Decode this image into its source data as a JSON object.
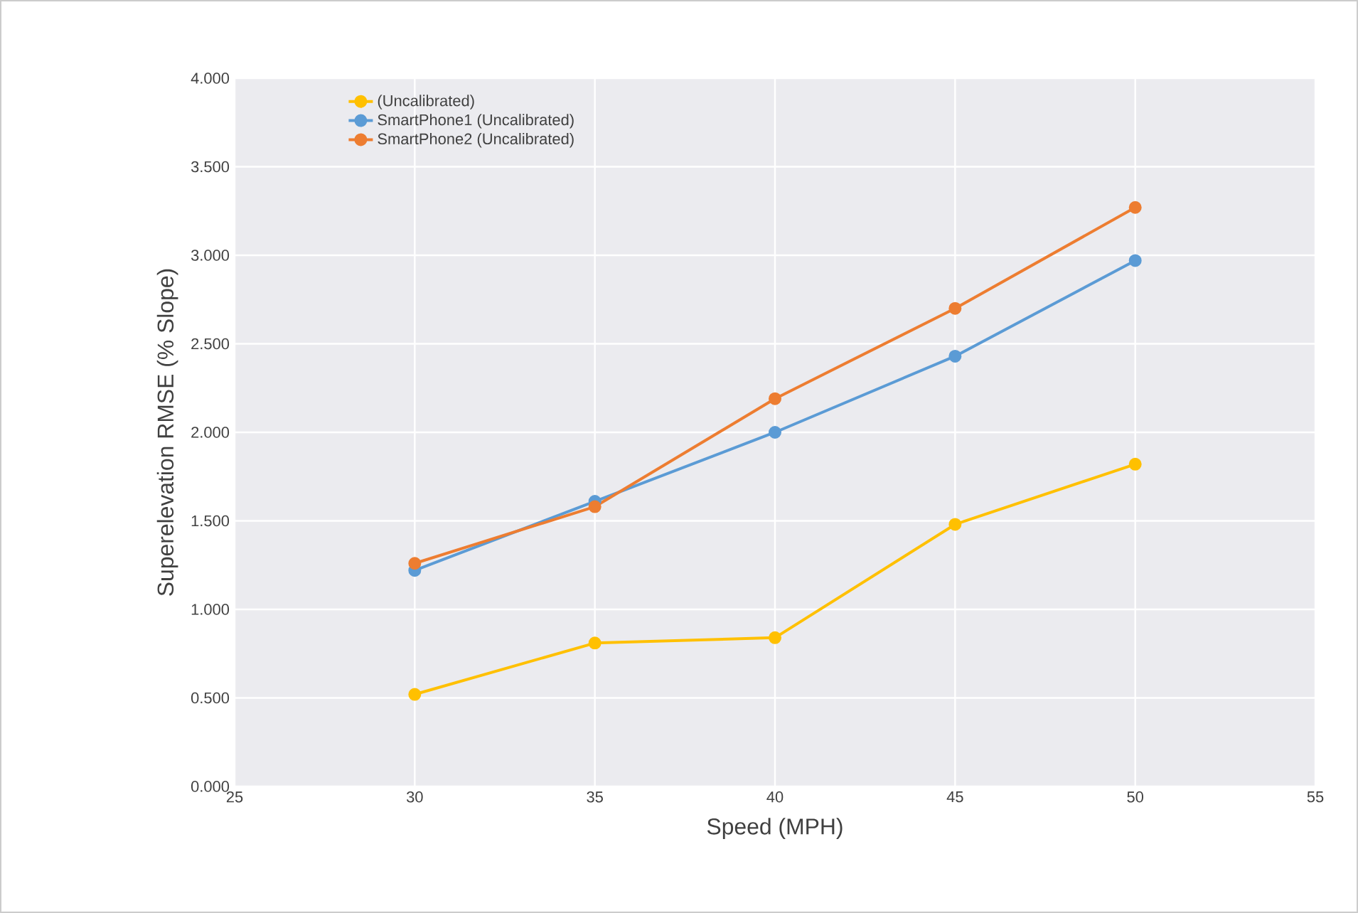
{
  "chart_data": {
    "type": "line",
    "xlabel": "Speed (MPH)",
    "ylabel": "Superelevation RMSE (% Slope)",
    "x": [
      30,
      35,
      40,
      45,
      50
    ],
    "series": [
      {
        "name": "(Uncalibrated)",
        "color": "#ffc000",
        "values": [
          0.52,
          0.81,
          0.84,
          1.48,
          1.82
        ]
      },
      {
        "name": "SmartPhone1 (Uncalibrated)",
        "color": "#5b9bd5",
        "values": [
          1.22,
          1.61,
          2.0,
          2.43,
          2.97
        ]
      },
      {
        "name": "SmartPhone2 (Uncalibrated)",
        "color": "#ed7d31",
        "values": [
          1.26,
          1.58,
          2.19,
          2.7,
          3.27
        ]
      }
    ],
    "xlim": [
      25,
      55
    ],
    "xticks": [
      25,
      30,
      35,
      40,
      45,
      50,
      55
    ],
    "ylim": [
      0,
      4
    ],
    "yticks": [
      {
        "value": 0,
        "label": "0.000"
      },
      {
        "value": 0.5,
        "label": "0.500"
      },
      {
        "value": 1,
        "label": "1.000"
      },
      {
        "value": 1.5,
        "label": "1.500"
      },
      {
        "value": 2,
        "label": "2.000"
      },
      {
        "value": 2.5,
        "label": "2.500"
      },
      {
        "value": 3,
        "label": "3.000"
      },
      {
        "value": 3.5,
        "label": "3.500"
      },
      {
        "value": 4,
        "label": "4.000"
      }
    ],
    "grid": true,
    "legend": "top left",
    "marker": "circle",
    "line_style": "solid"
  }
}
